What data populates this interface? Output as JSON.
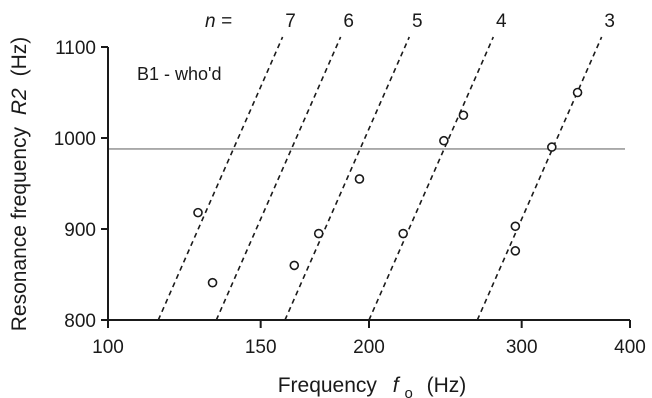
{
  "chart_data": {
    "type": "scatter",
    "title": "",
    "annotation": "B1 - who'd",
    "xlabel": {
      "prefix": "Frequency",
      "symbol": "f",
      "subscript": "o",
      "unit": "(Hz)"
    },
    "ylabel": {
      "prefix": "Resonance frequency",
      "symbol": "R2",
      "unit": "(Hz)"
    },
    "xscale": "log",
    "xlim": [
      100,
      400
    ],
    "ylim": [
      800,
      1100
    ],
    "xticks": [
      100,
      150,
      200,
      300,
      400
    ],
    "yticks": [
      800,
      900,
      1000,
      1100
    ],
    "harmonic_prefix": "n =",
    "harmonic_lines": [
      {
        "n": "7",
        "equation": "R2 = 7 × fo"
      },
      {
        "n": "6",
        "equation": "R2 = 6 × fo"
      },
      {
        "n": "5",
        "equation": "R2 = 5 × fo"
      },
      {
        "n": "4",
        "equation": "R2 = 4 × fo"
      },
      {
        "n": "3",
        "equation": "R2 = 3 × fo"
      }
    ],
    "reference_line_y": 988,
    "points": [
      {
        "x": 127,
        "y": 918
      },
      {
        "x": 132,
        "y": 841
      },
      {
        "x": 164,
        "y": 860
      },
      {
        "x": 175,
        "y": 895
      },
      {
        "x": 195,
        "y": 955
      },
      {
        "x": 219,
        "y": 895
      },
      {
        "x": 244,
        "y": 997
      },
      {
        "x": 257,
        "y": 1025
      },
      {
        "x": 295,
        "y": 903
      },
      {
        "x": 295,
        "y": 876
      },
      {
        "x": 325,
        "y": 990
      },
      {
        "x": 348,
        "y": 1050
      }
    ],
    "grid": false,
    "colors": {
      "axis": "#1a1a1a",
      "reference_line": "#a8a8a8",
      "markers": "#1a1a1a"
    }
  }
}
